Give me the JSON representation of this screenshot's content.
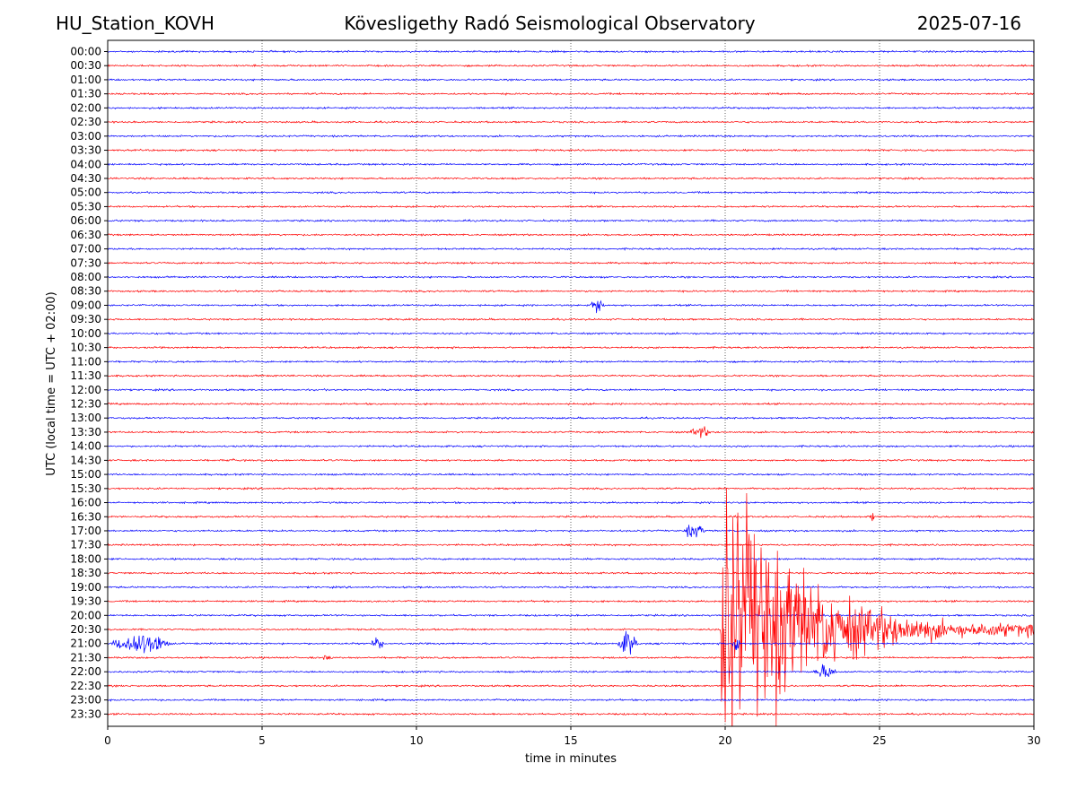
{
  "header": {
    "station": "HU_Station_KOVH",
    "observatory": "Kövesligethy Radó Seismological Observatory",
    "date": "2025-07-16"
  },
  "chart_data": {
    "type": "line",
    "title": "Kövesligethy Radó Seismological Observatory",
    "xlabel": "time in minutes",
    "ylabel": "UTC (local time = UTC + 02:00)",
    "xlim": [
      0,
      30
    ],
    "x_ticks": [
      0,
      5,
      10,
      15,
      20,
      25,
      30
    ],
    "grid": "vertical dotted at x ticks",
    "rows": [
      "00:00",
      "00:30",
      "01:00",
      "01:30",
      "02:00",
      "02:30",
      "03:00",
      "03:30",
      "04:00",
      "04:30",
      "05:00",
      "05:30",
      "06:00",
      "06:30",
      "07:00",
      "07:30",
      "08:00",
      "08:30",
      "09:00",
      "09:30",
      "10:00",
      "10:30",
      "11:00",
      "11:30",
      "12:00",
      "12:30",
      "13:00",
      "13:30",
      "14:00",
      "14:30",
      "15:00",
      "15:30",
      "16:00",
      "16:30",
      "17:00",
      "17:30",
      "18:00",
      "18:30",
      "19:00",
      "19:30",
      "20:00",
      "20:30",
      "21:00",
      "21:30",
      "22:00",
      "22:30",
      "23:00",
      "23:30"
    ],
    "row_colors": [
      "#0000ff",
      "#ff0000"
    ],
    "events": [
      {
        "row": "09:00",
        "start_min": 15.6,
        "end_min": 16.3,
        "peak_rows": 0.6
      },
      {
        "row": "13:30",
        "start_min": 18.8,
        "end_min": 19.9,
        "peak_rows": 0.4
      },
      {
        "row": "14:30",
        "start_min": 4.0,
        "end_min": 4.2,
        "peak_rows": 0.2
      },
      {
        "row": "16:30",
        "start_min": 24.7,
        "end_min": 24.9,
        "peak_rows": 0.4
      },
      {
        "row": "17:00",
        "start_min": 18.6,
        "end_min": 19.7,
        "peak_rows": 0.5
      },
      {
        "row": "20:30",
        "start_min": 19.85,
        "end_min": 30.0,
        "peak_rows": 9.0
      },
      {
        "row": "21:00",
        "start_min": 0.0,
        "end_min": 3.0,
        "peak_rows": 0.8
      },
      {
        "row": "21:00",
        "start_min": 8.5,
        "end_min": 9.2,
        "peak_rows": 0.4
      },
      {
        "row": "21:00",
        "start_min": 16.5,
        "end_min": 17.5,
        "peak_rows": 0.8
      },
      {
        "row": "21:00",
        "start_min": 20.2,
        "end_min": 20.6,
        "peak_rows": 0.7
      },
      {
        "row": "21:30",
        "start_min": 6.9,
        "end_min": 7.5,
        "peak_rows": 0.2
      },
      {
        "row": "22:00",
        "start_min": 22.8,
        "end_min": 24.0,
        "peak_rows": 0.5
      }
    ]
  }
}
